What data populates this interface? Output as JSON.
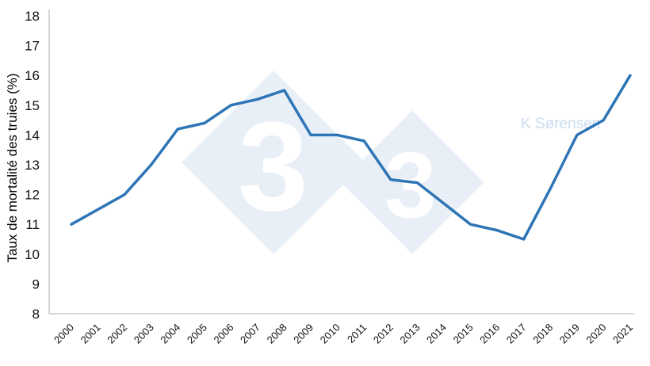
{
  "chart_data": {
    "type": "line",
    "x": [
      2000,
      2001,
      2002,
      2003,
      2004,
      2005,
      2006,
      2007,
      2008,
      2009,
      2010,
      2011,
      2012,
      2013,
      2014,
      2015,
      2016,
      2017,
      2018,
      2019,
      2020,
      2021
    ],
    "series": [
      {
        "name": "Taux de mortalité des truies",
        "values": [
          11,
          11.5,
          12,
          13,
          14.2,
          14.4,
          15,
          15.2,
          15.5,
          14,
          14,
          13.8,
          12.5,
          12.4,
          11.7,
          11,
          10.8,
          10.5,
          12.2,
          14,
          14.5,
          16
        ]
      }
    ],
    "title": "",
    "xlabel": "",
    "ylabel": "Taux de mortalité des truies (%)",
    "ylim": [
      8,
      18
    ],
    "ytick_step": 1,
    "grid": false,
    "legend": "none",
    "line_color": "#2E75B6",
    "axis_color": "#c8c8c8"
  },
  "watermark": {
    "glyph": "3",
    "credit": "K Sørensen",
    "diamond_color": "#e9eff7",
    "credit_color": "#cadcf0"
  }
}
